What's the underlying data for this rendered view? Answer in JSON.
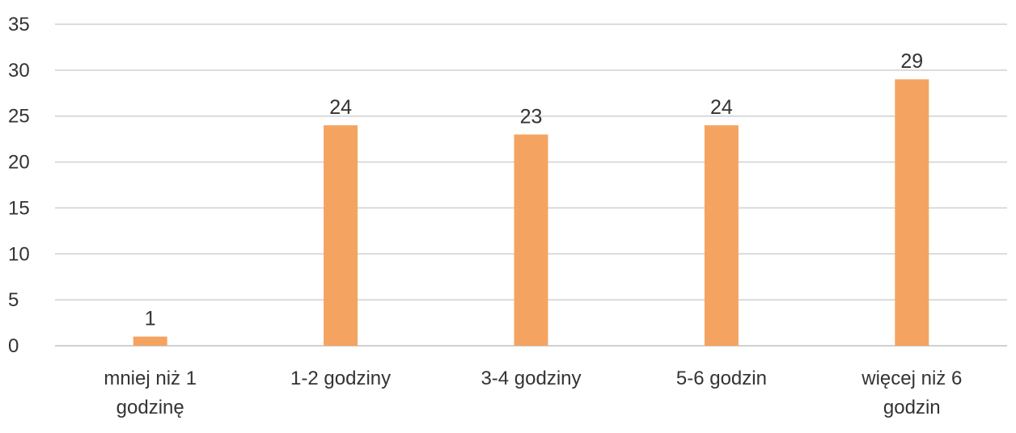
{
  "chart_data": {
    "type": "bar",
    "categories": [
      [
        "mniej niż 1",
        "godzinę"
      ],
      [
        "1-2 godziny"
      ],
      [
        "3-4 godziny"
      ],
      [
        "5-6 godzin"
      ],
      [
        "więcej niż 6",
        "godzin"
      ]
    ],
    "values": [
      1,
      24,
      23,
      24,
      29
    ],
    "data_labels": [
      "1",
      "24",
      "23",
      "24",
      "29"
    ],
    "y_ticks": [
      "0",
      "5",
      "10",
      "15",
      "20",
      "25",
      "30",
      "35"
    ],
    "ylim": [
      0,
      35
    ],
    "grid": true,
    "bar_color": "#F4A460",
    "grid_color": "#D0D0D0"
  }
}
